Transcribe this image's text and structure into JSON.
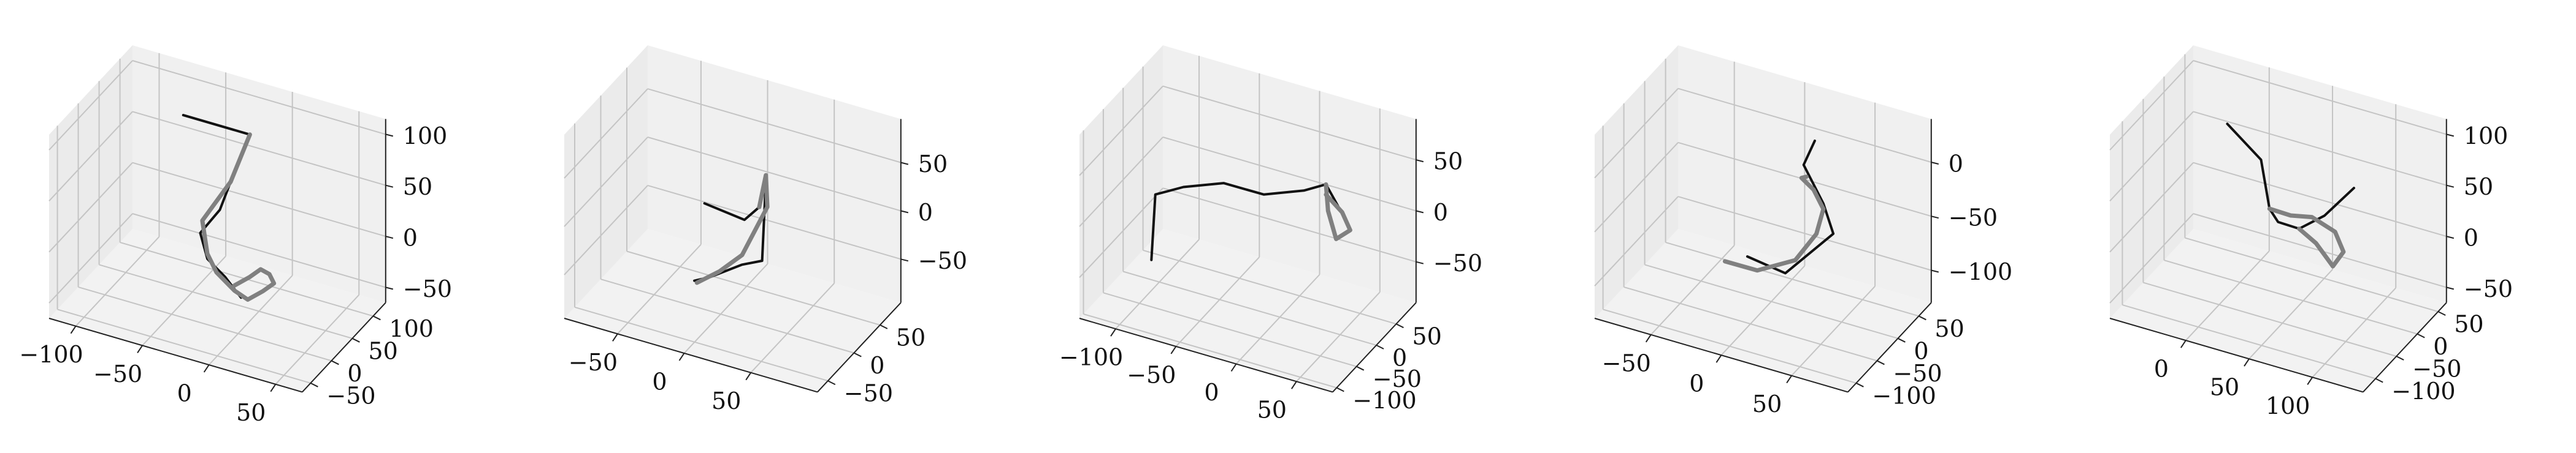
{
  "chart_data": [
    {
      "type": "line3d",
      "xlim": [
        -120,
        70
      ],
      "ylim": [
        -70,
        130
      ],
      "zlim": [
        -65,
        115
      ],
      "xticks": [
        -100,
        -50,
        0,
        50
      ],
      "yticks": [
        -50,
        0,
        50,
        100
      ],
      "zticks": [
        -50,
        0,
        50,
        100
      ],
      "xtick_labels": [
        "−100",
        "−50",
        "0",
        "50"
      ],
      "ytick_labels": [
        "−50",
        "0",
        "50",
        "100"
      ],
      "ztick_labels": [
        "−50",
        "0",
        "50",
        "100"
      ],
      "grid": true,
      "series": [
        {
          "color": "#111111",
          "points": [
            [
              -60,
              60,
              100
            ],
            [
              -10,
              60,
              100
            ],
            [
              -15,
              30,
              65
            ],
            [
              -20,
              20,
              40
            ],
            [
              -30,
              5,
              20
            ],
            [
              -20,
              -10,
              5
            ],
            [
              -5,
              -15,
              -5
            ],
            [
              10,
              -25,
              -15
            ]
          ]
        },
        {
          "color": "#808080",
          "points": [
            [
              -10,
              60,
              100
            ],
            [
              -15,
              30,
              65
            ],
            [
              -30,
              10,
              30
            ],
            [
              -20,
              -10,
              10
            ],
            [
              -10,
              -20,
              0
            ],
            [
              5,
              -25,
              -10
            ],
            [
              15,
              -25,
              -15
            ],
            [
              25,
              -20,
              -5
            ],
            [
              30,
              -10,
              0
            ],
            [
              25,
              -5,
              5
            ],
            [
              20,
              -10,
              10
            ],
            [
              15,
              -20,
              5
            ],
            [
              5,
              -25,
              -5
            ]
          ]
        }
      ]
    },
    {
      "type": "line3d",
      "xlim": [
        -90,
        100
      ],
      "ylim": [
        -70,
        90
      ],
      "zlim": [
        -95,
        95
      ],
      "xticks": [
        -50,
        0,
        50
      ],
      "yticks": [
        -50,
        0,
        50
      ],
      "zticks": [
        -50,
        0,
        50
      ],
      "xtick_labels": [
        "−50",
        "0",
        "50"
      ],
      "ytick_labels": [
        "−50",
        "0",
        "50"
      ],
      "ztick_labels": [
        "−50",
        "0",
        "50"
      ],
      "grid": true,
      "series": [
        {
          "color": "#111111",
          "points": [
            [
              -20,
              20,
              0
            ],
            [
              10,
              20,
              -5
            ],
            [
              25,
              10,
              20
            ],
            [
              30,
              10,
              50
            ],
            [
              35,
              -10,
              -20
            ],
            [
              20,
              -10,
              -30
            ],
            [
              0,
              -20,
              -45
            ],
            [
              -10,
              -25,
              -50
            ]
          ]
        },
        {
          "color": "#808080",
          "points": [
            [
              25,
              10,
              20
            ],
            [
              30,
              10,
              55
            ],
            [
              35,
              0,
              30
            ],
            [
              20,
              -10,
              -20
            ],
            [
              5,
              -15,
              -40
            ],
            [
              -10,
              -20,
              -55
            ]
          ]
        }
      ]
    },
    {
      "type": "line3d",
      "xlim": [
        -130,
        80
      ],
      "ylim": [
        -110,
        100
      ],
      "zlim": [
        -90,
        90
      ],
      "xticks": [
        -100,
        -50,
        0,
        50
      ],
      "yticks": [
        -100,
        -50,
        0,
        50
      ],
      "zticks": [
        -50,
        0,
        50
      ],
      "xtick_labels": [
        "−100",
        "−50",
        "0",
        "50"
      ],
      "ytick_labels": [
        "−100",
        "−50",
        "0",
        "50"
      ],
      "ztick_labels": [
        "−50",
        "0",
        "50"
      ],
      "grid": true,
      "series": [
        {
          "color": "#111111",
          "points": [
            [
              -100,
              -20,
              -60
            ],
            [
              -100,
              -10,
              0
            ],
            [
              -80,
              0,
              10
            ],
            [
              -50,
              10,
              20
            ],
            [
              -20,
              20,
              15
            ],
            [
              10,
              30,
              25
            ],
            [
              30,
              25,
              40
            ],
            [
              50,
              20,
              10
            ]
          ]
        },
        {
          "color": "#808080",
          "points": [
            [
              30,
              25,
              40
            ],
            [
              35,
              15,
              20
            ],
            [
              45,
              5,
              0
            ],
            [
              55,
              10,
              10
            ],
            [
              45,
              20,
              20
            ],
            [
              30,
              25,
              30
            ]
          ]
        }
      ]
    },
    {
      "type": "line3d",
      "xlim": [
        -90,
        90
      ],
      "ylim": [
        -120,
        80
      ],
      "zlim": [
        -130,
        40
      ],
      "xticks": [
        -50,
        0,
        50
      ],
      "yticks": [
        -100,
        -50,
        0,
        50
      ],
      "zticks": [
        -100,
        -50,
        0
      ],
      "xtick_labels": [
        "−50",
        "0",
        "50"
      ],
      "ytick_labels": [
        "−100",
        "−50",
        "0",
        "50"
      ],
      "ztick_labels": [
        "−100",
        "−50",
        "0"
      ],
      "grid": true,
      "series": [
        {
          "color": "#111111",
          "points": [
            [
              -20,
              10,
              -100
            ],
            [
              10,
              0,
              -100
            ],
            [
              30,
              -10,
              -70
            ],
            [
              50,
              -20,
              -40
            ],
            [
              40,
              -10,
              -20
            ],
            [
              30,
              0,
              -10
            ],
            [
              20,
              10,
              0
            ],
            [
              25,
              20,
              20
            ]
          ]
        },
        {
          "color": "#808080",
          "points": [
            [
              -30,
              -10,
              -100
            ],
            [
              -10,
              0,
              -105
            ],
            [
              20,
              -10,
              -80
            ],
            [
              35,
              -10,
              -50
            ],
            [
              40,
              -10,
              -25
            ],
            [
              30,
              0,
              -15
            ],
            [
              20,
              5,
              -10
            ],
            [
              25,
              0,
              -5
            ]
          ]
        }
      ]
    },
    {
      "type": "line3d",
      "xlim": [
        -60,
        140
      ],
      "ylim": [
        -130,
        70
      ],
      "zlim": [
        -65,
        115
      ],
      "xticks": [
        0,
        50,
        100
      ],
      "yticks": [
        -100,
        -50,
        0,
        50
      ],
      "zticks": [
        -50,
        0,
        50,
        100
      ],
      "xtick_labels": [
        "0",
        "50",
        "100"
      ],
      "ytick_labels": [
        "−100",
        "−50",
        "0",
        "50"
      ],
      "ztick_labels": [
        "−50",
        "0",
        "50",
        "100"
      ],
      "grid": true,
      "series": [
        {
          "color": "#111111",
          "points": [
            [
              -20,
              30,
              70
            ],
            [
              10,
              20,
              50
            ],
            [
              20,
              10,
              10
            ],
            [
              30,
              0,
              5
            ],
            [
              50,
              -10,
              10
            ],
            [
              70,
              -10,
              30
            ],
            [
              90,
              0,
              60
            ]
          ]
        },
        {
          "color": "#808080",
          "points": [
            [
              20,
              10,
              10
            ],
            [
              40,
              0,
              15
            ],
            [
              60,
              -10,
              25
            ],
            [
              80,
              -15,
              20
            ],
            [
              85,
              -10,
              0
            ],
            [
              75,
              -5,
              -20
            ],
            [
              60,
              0,
              -5
            ],
            [
              50,
              -10,
              10
            ]
          ]
        }
      ]
    }
  ]
}
